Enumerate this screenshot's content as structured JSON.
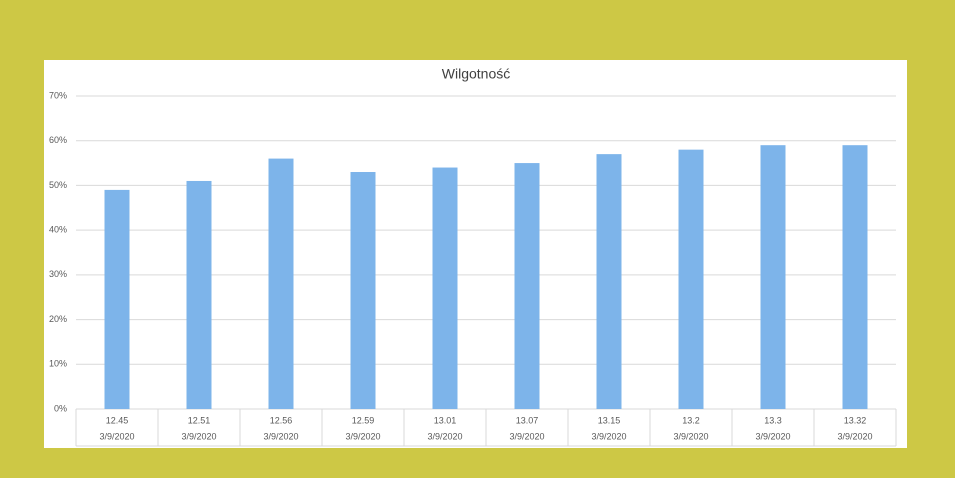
{
  "chart_data": {
    "type": "bar",
    "title": "Wilgotność",
    "categories": [
      "12.45",
      "12.51",
      "12.56",
      "12.59",
      "13.01",
      "13.07",
      "13.15",
      "13.2",
      "13.3",
      "13.32"
    ],
    "category_dates": [
      "3/9/2020",
      "3/9/2020",
      "3/9/2020",
      "3/9/2020",
      "3/9/2020",
      "3/9/2020",
      "3/9/2020",
      "3/9/2020",
      "3/9/2020",
      "3/9/2020"
    ],
    "values": [
      49,
      51,
      56,
      53,
      54,
      55,
      57,
      58,
      59,
      59
    ],
    "color": "#7db4ea",
    "ylim": [
      0,
      70
    ],
    "yticks": [
      {
        "value": 0,
        "label": "0%"
      },
      {
        "value": 10,
        "label": "10%"
      },
      {
        "value": 20,
        "label": "20%"
      },
      {
        "value": 30,
        "label": "30%"
      },
      {
        "value": 40,
        "label": "40%"
      },
      {
        "value": 50,
        "label": "50%"
      },
      {
        "value": 60,
        "label": "60%"
      },
      {
        "value": 70,
        "label": "70%"
      }
    ],
    "grid": true
  }
}
